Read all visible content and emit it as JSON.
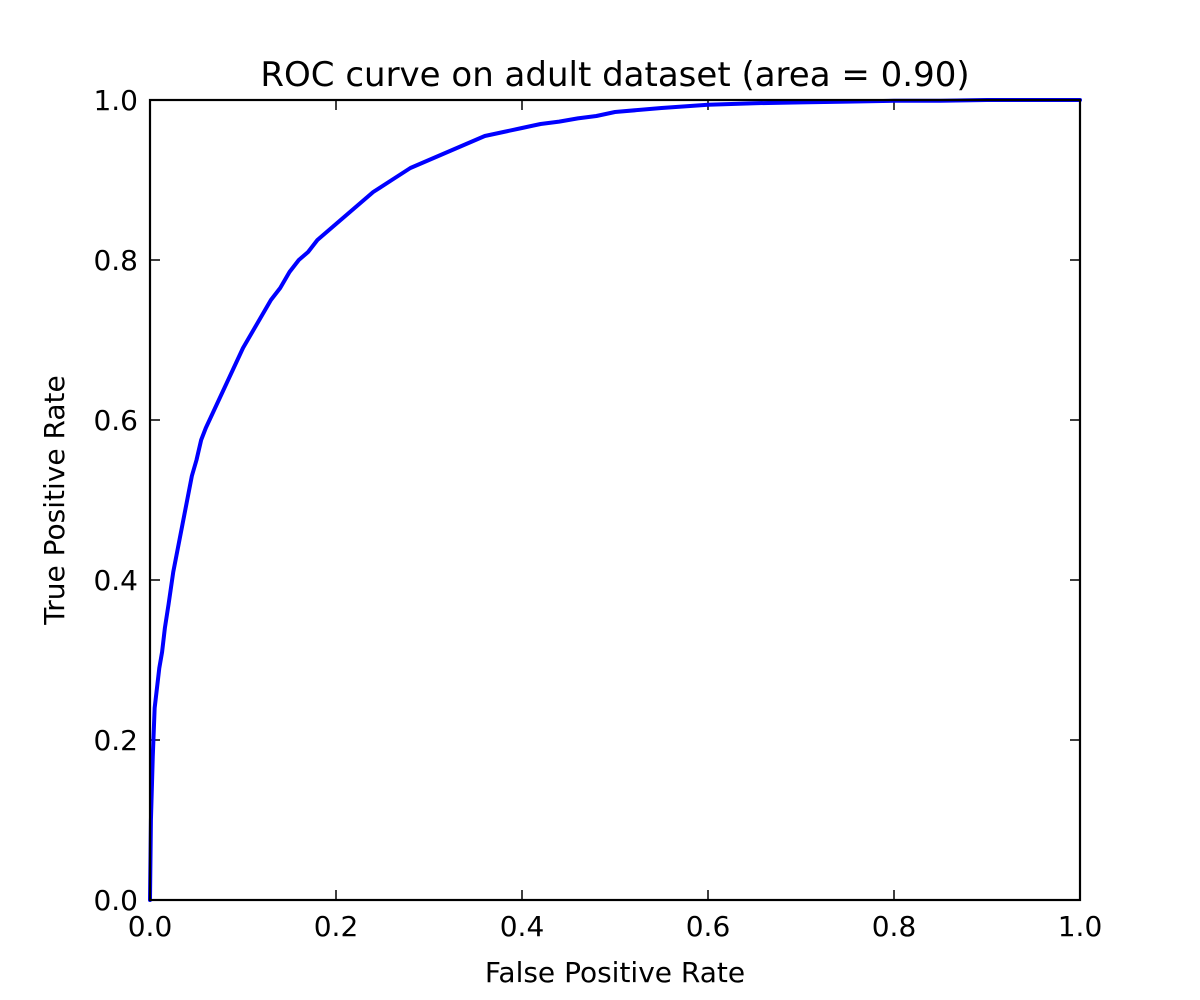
{
  "chart_data": {
    "type": "line",
    "title": "ROC curve on adult dataset (area = 0.90)",
    "xlabel": "False Positive Rate",
    "ylabel": "True Positive Rate",
    "xlim": [
      0.0,
      1.0
    ],
    "ylim": [
      0.0,
      1.0
    ],
    "xticks": [
      0.0,
      0.2,
      0.4,
      0.6,
      0.8,
      1.0
    ],
    "yticks": [
      0.0,
      0.2,
      0.4,
      0.6,
      0.8,
      1.0
    ],
    "xtick_labels": [
      "0.0",
      "0.2",
      "0.4",
      "0.6",
      "0.8",
      "1.0"
    ],
    "ytick_labels": [
      "0.0",
      "0.2",
      "0.4",
      "0.6",
      "0.8",
      "1.0"
    ],
    "grid": false,
    "legend": "none",
    "series": [
      {
        "color": "#0000ff",
        "x": [
          0.0,
          0.001,
          0.003,
          0.005,
          0.008,
          0.01,
          0.013,
          0.016,
          0.02,
          0.025,
          0.03,
          0.035,
          0.04,
          0.045,
          0.05,
          0.055,
          0.06,
          0.07,
          0.08,
          0.09,
          0.1,
          0.11,
          0.12,
          0.13,
          0.14,
          0.15,
          0.16,
          0.17,
          0.18,
          0.19,
          0.2,
          0.22,
          0.24,
          0.26,
          0.28,
          0.3,
          0.32,
          0.34,
          0.36,
          0.38,
          0.4,
          0.42,
          0.44,
          0.46,
          0.48,
          0.5,
          0.55,
          0.6,
          0.65,
          0.7,
          0.75,
          0.8,
          0.85,
          0.9,
          0.95,
          1.0
        ],
        "y": [
          0.0,
          0.1,
          0.18,
          0.24,
          0.27,
          0.29,
          0.31,
          0.34,
          0.37,
          0.41,
          0.44,
          0.47,
          0.5,
          0.53,
          0.55,
          0.575,
          0.59,
          0.615,
          0.64,
          0.665,
          0.69,
          0.71,
          0.73,
          0.75,
          0.765,
          0.785,
          0.8,
          0.81,
          0.825,
          0.835,
          0.845,
          0.865,
          0.885,
          0.9,
          0.915,
          0.925,
          0.935,
          0.945,
          0.955,
          0.96,
          0.965,
          0.97,
          0.973,
          0.977,
          0.98,
          0.985,
          0.99,
          0.994,
          0.996,
          0.997,
          0.998,
          0.999,
          0.999,
          1.0,
          1.0,
          1.0
        ]
      }
    ]
  }
}
